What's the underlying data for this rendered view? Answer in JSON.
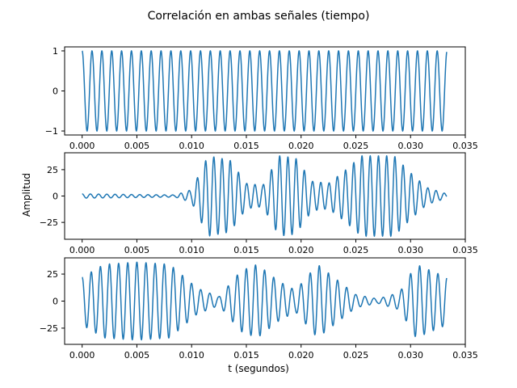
{
  "figure": {
    "suptitle": "Correlación en ambas señales (tiempo)",
    "ylabel": "Amplitud",
    "xlabel": "t (segundos)"
  },
  "colors": {
    "line": "#1f77b4"
  },
  "chart_data": [
    {
      "type": "line",
      "name": "panel-1",
      "xlim": [
        -0.0016,
        0.035
      ],
      "ylim": [
        -1.1,
        1.1
      ],
      "xticks": [
        "0.000",
        "0.005",
        "0.010",
        "0.015",
        "0.020",
        "0.025",
        "0.030",
        "0.035"
      ],
      "yticks": [
        1,
        0,
        -1
      ],
      "duration": 0.0333,
      "amplitude": 1,
      "components": [
        {
          "freq": 1110,
          "amp": 1
        }
      ]
    },
    {
      "type": "line",
      "name": "panel-2",
      "xlim": [
        -0.0016,
        0.035
      ],
      "ylim": [
        -41,
        41
      ],
      "xticks": [
        "0.000",
        "0.005",
        "0.010",
        "0.015",
        "0.020",
        "0.025",
        "0.030",
        "0.035"
      ],
      "yticks": [
        25,
        0,
        -25
      ],
      "duration": 0.0333,
      "amplitude": 38,
      "envelope_points": [
        [
          0,
          2
        ],
        [
          0.0085,
          1
        ],
        [
          0.01,
          6
        ],
        [
          0.0115,
          38
        ],
        [
          0.0135,
          34
        ],
        [
          0.015,
          12
        ],
        [
          0.0165,
          10
        ],
        [
          0.018,
          38
        ],
        [
          0.0195,
          36
        ],
        [
          0.021,
          14
        ],
        [
          0.0225,
          12
        ],
        [
          0.024,
          24
        ],
        [
          0.0255,
          38
        ],
        [
          0.027,
          38
        ],
        [
          0.0285,
          38
        ],
        [
          0.03,
          22
        ],
        [
          0.0315,
          8
        ],
        [
          0.0333,
          2
        ]
      ],
      "components": [
        {
          "freq": 1330,
          "amp": 1
        }
      ]
    },
    {
      "type": "line",
      "name": "panel-3",
      "xlim": [
        -0.0016,
        0.035
      ],
      "ylim": [
        -40,
        40
      ],
      "xticks": [
        "0.000",
        "0.005",
        "0.010",
        "0.015",
        "0.020",
        "0.025",
        "0.030",
        "0.035"
      ],
      "yticks": [
        25,
        0,
        -25
      ],
      "duration": 0.0333,
      "amplitude": 36,
      "envelope_points": [
        [
          0,
          22
        ],
        [
          0.002,
          34
        ],
        [
          0.005,
          36
        ],
        [
          0.008,
          34
        ],
        [
          0.0105,
          12
        ],
        [
          0.0125,
          4
        ],
        [
          0.0145,
          28
        ],
        [
          0.016,
          34
        ],
        [
          0.018,
          18
        ],
        [
          0.0195,
          10
        ],
        [
          0.0215,
          34
        ],
        [
          0.023,
          22
        ],
        [
          0.025,
          6
        ],
        [
          0.027,
          2
        ],
        [
          0.029,
          8
        ],
        [
          0.0305,
          34
        ],
        [
          0.0333,
          22
        ]
      ],
      "components": [
        {
          "freq": 1200,
          "amp": 1
        }
      ]
    }
  ]
}
